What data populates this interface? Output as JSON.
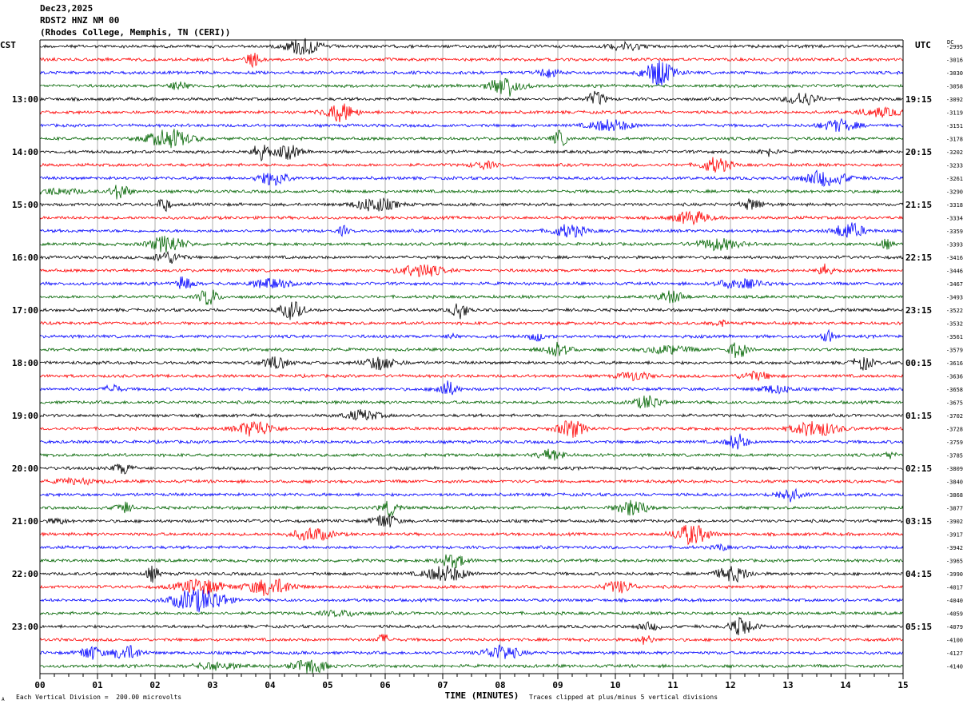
{
  "header": {
    "date": "Dec23,2025",
    "station": "RDST2 HNZ NM 00",
    "location": "(Rhodes College, Memphis, TN (CERI))"
  },
  "left_zone": "CST",
  "right_zone": "UTC",
  "dc_label": "DC",
  "footer": {
    "scale": "Each Vertical Division =  200.00 microvolts",
    "clip": "Traces clipped at plus/minus 5 vertical divisions",
    "mark": "A"
  },
  "chart_data": {
    "type": "line",
    "title": "",
    "xlabel": "TIME (MINUTES)",
    "ylabel": "",
    "x_ticks": [
      "00",
      "01",
      "02",
      "03",
      "04",
      "05",
      "06",
      "07",
      "08",
      "09",
      "10",
      "11",
      "12",
      "13",
      "14",
      "15"
    ],
    "xlim": [
      0,
      15
    ],
    "trace_colors": [
      "#000000",
      "#ff0000",
      "#0000ff",
      "#006400"
    ],
    "left_hours": [
      "13:00",
      "14:00",
      "15:00",
      "16:00",
      "17:00",
      "18:00",
      "19:00",
      "20:00",
      "21:00",
      "22:00",
      "23:00"
    ],
    "right_hours": [
      "19:15",
      "20:15",
      "21:15",
      "22:15",
      "23:15",
      "00:15",
      "01:15",
      "02:15",
      "03:15",
      "04:15",
      "05:15"
    ],
    "dc_offsets": [
      -2995,
      -3016,
      -3030,
      -3058,
      -3092,
      -3119,
      -3151,
      -3178,
      -3202,
      -3233,
      -3261,
      -3290,
      -3318,
      -3334,
      -3359,
      -3393,
      -3416,
      -3446,
      -3467,
      -3493,
      -3522,
      -3532,
      -3561,
      -3579,
      -3616,
      -3636,
      -3658,
      -3675,
      -3702,
      -3728,
      -3759,
      -3785,
      -3809,
      -3840,
      -3868,
      -3877,
      -3902,
      -3917,
      -3942,
      -3965,
      -3990,
      -4017,
      -4040,
      -4059,
      -4079,
      -4100,
      -4127,
      -4140
    ]
  }
}
